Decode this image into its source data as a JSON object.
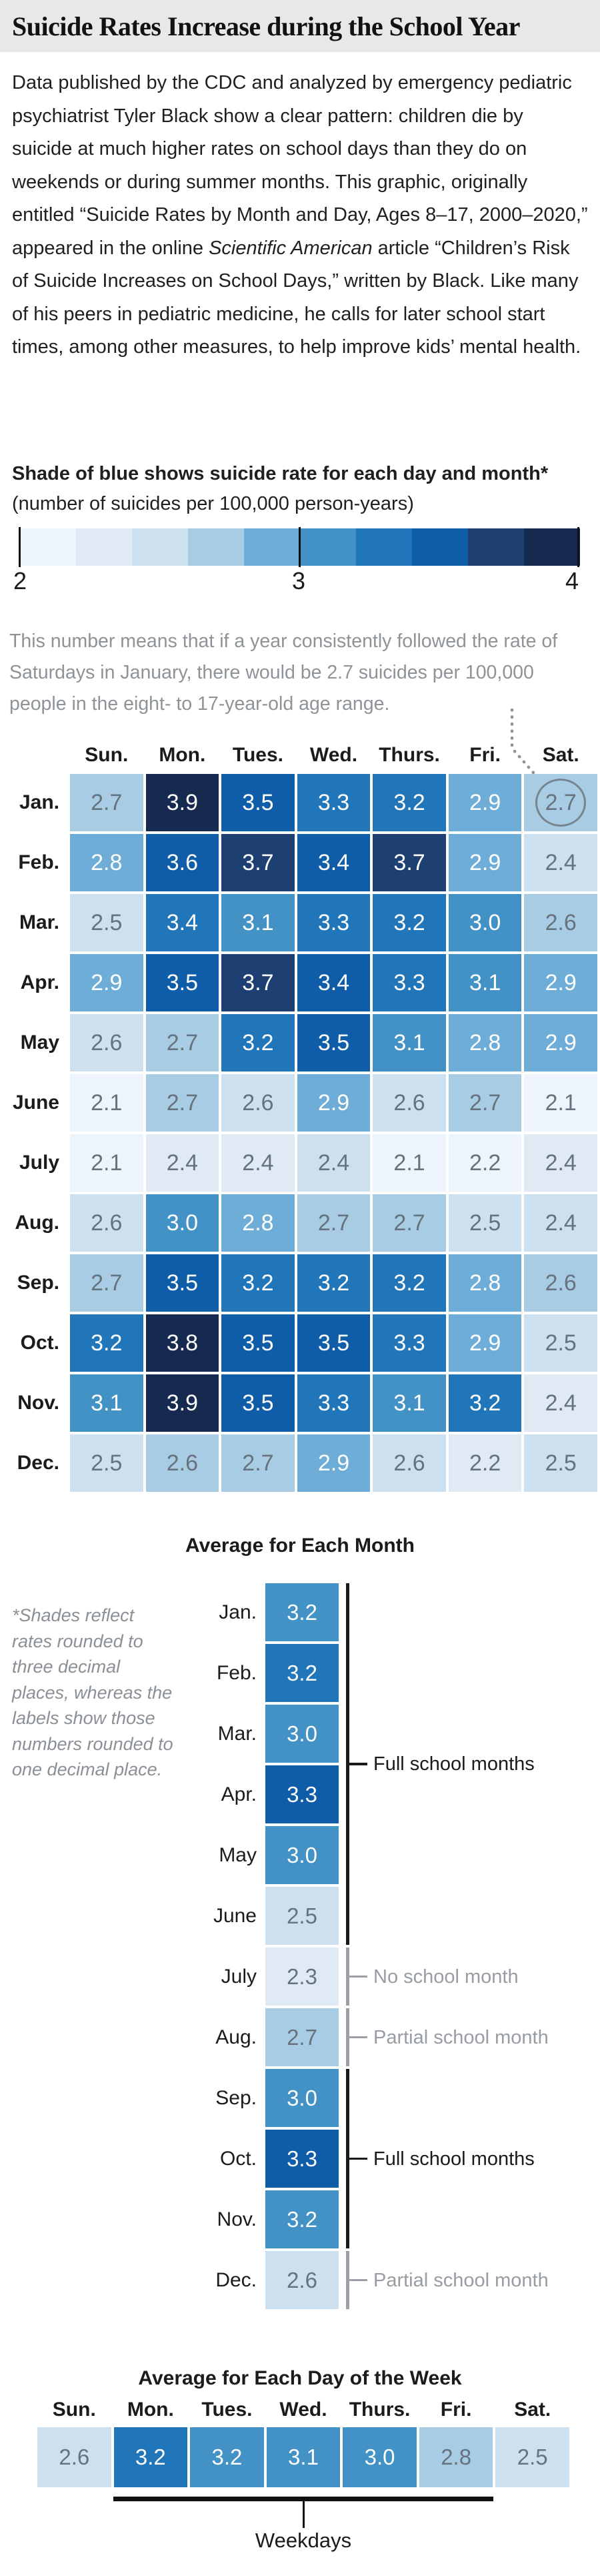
{
  "title": "Suicide Rates Increase during the School Year",
  "intro": {
    "p1": "Data published by the CDC and analyzed by emergency pediatric psychiatrist Tyler Black show a clear pattern: children die by suicide at much higher rates on school days than they do on weekends or during summer months. This graphic, originally entitled “Suicide Rates by Month and Day, Ages 8–17, 2000–2020,” appeared in the online ",
    "italic": "Scientific American",
    "p2": " article “Children’s Risk of Suicide Increases on School Days,” written by Black. Like many of his peers in pediatric medicine, he calls for later school start times, among other measures, to help improve kids’ mental health."
  },
  "legend": {
    "heading_bold": "Shade of blue shows suicide rate for each day and month*",
    "heading_normal": " (number of suicides per 100,000 person-years)",
    "scale_colors": [
      "#edf4fb",
      "#dfeaf5",
      "#cde0f0",
      "#a8cce4",
      "#6dadd7",
      "#4292c6",
      "#2176b9",
      "#0f5ca9",
      "#1e3f72",
      "#16294e"
    ],
    "ticks": [
      "2",
      "3",
      "4"
    ]
  },
  "annotation": "This number means that if a year consistently followed the rate of Saturdays in January, there would be 2.7 suicides per 100,000 people in the eight- to 17-year-old age range.",
  "footnote": "*Shades reflect rates rounded to three decimal places, whereas the labels show those numbers rounded to one decimal place.",
  "colors": {
    "title_bar_bg": "#e8e8e6",
    "ink": "#1b1b1b",
    "value_text_gray": "#66737e",
    "value_text_white": "#ffffff",
    "annotation_gray": "#8e9398",
    "bracket_black": "#1a1a1a",
    "bracket_gray": "#9aa0a5",
    "bracket_gray_label": "#979da3",
    "connector_gray": "#8a949c"
  },
  "chart_data": [
    {
      "type": "heatmap",
      "title": "Suicide Rates by Month and Day, Ages 8–17, 2000–2020",
      "columns": [
        "Sun.",
        "Mon.",
        "Tues.",
        "Wed.",
        "Thurs.",
        "Fri.",
        "Sat."
      ],
      "rows": [
        "Jan.",
        "Feb.",
        "Mar.",
        "Apr.",
        "May",
        "June",
        "July",
        "Aug.",
        "Sep.",
        "Oct.",
        "Nov.",
        "Dec."
      ],
      "values": [
        [
          2.7,
          3.9,
          3.5,
          3.3,
          3.2,
          2.9,
          2.7
        ],
        [
          2.8,
          3.6,
          3.7,
          3.4,
          3.7,
          2.9,
          2.4
        ],
        [
          2.5,
          3.4,
          3.1,
          3.3,
          3.2,
          3.0,
          2.6
        ],
        [
          2.9,
          3.5,
          3.7,
          3.4,
          3.3,
          3.1,
          2.9
        ],
        [
          2.6,
          2.7,
          3.2,
          3.5,
          3.1,
          2.8,
          2.9
        ],
        [
          2.1,
          2.7,
          2.6,
          2.9,
          2.6,
          2.7,
          2.1
        ],
        [
          2.1,
          2.4,
          2.4,
          2.4,
          2.1,
          2.2,
          2.4
        ],
        [
          2.6,
          3.0,
          2.8,
          2.7,
          2.7,
          2.5,
          2.4
        ],
        [
          2.7,
          3.5,
          3.2,
          3.2,
          3.2,
          2.8,
          2.6
        ],
        [
          3.2,
          3.8,
          3.5,
          3.5,
          3.3,
          2.9,
          2.5
        ],
        [
          3.1,
          3.9,
          3.5,
          3.3,
          3.1,
          3.2,
          2.4
        ],
        [
          2.5,
          2.6,
          2.7,
          2.9,
          2.6,
          2.2,
          2.5
        ]
      ],
      "shades": [
        [
          3,
          9,
          7,
          6,
          6,
          4,
          3
        ],
        [
          4,
          7,
          8,
          7,
          8,
          4,
          2
        ],
        [
          2,
          6,
          5,
          6,
          6,
          5,
          3
        ],
        [
          4,
          7,
          8,
          7,
          6,
          5,
          4
        ],
        [
          2,
          3,
          6,
          7,
          5,
          4,
          4
        ],
        [
          0,
          3,
          2,
          4,
          2,
          3,
          0
        ],
        [
          0,
          1,
          1,
          2,
          0,
          0,
          1
        ],
        [
          2,
          5,
          4,
          3,
          3,
          2,
          2
        ],
        [
          3,
          7,
          6,
          6,
          6,
          4,
          3
        ],
        [
          6,
          9,
          7,
          7,
          6,
          4,
          2
        ],
        [
          5,
          9,
          7,
          6,
          5,
          6,
          1
        ],
        [
          2,
          3,
          3,
          4,
          2,
          1,
          2
        ]
      ],
      "scale_range": [
        2,
        4
      ],
      "circled_cell": {
        "row": "Jan.",
        "column": "Sat.",
        "value": 2.7
      }
    },
    {
      "type": "bar",
      "title": "Average for Each Month",
      "categories": [
        "Jan.",
        "Feb.",
        "Mar.",
        "Apr.",
        "May",
        "June",
        "July",
        "Aug.",
        "Sep.",
        "Oct.",
        "Nov.",
        "Dec."
      ],
      "values": [
        3.2,
        3.2,
        3.0,
        3.3,
        3.0,
        2.5,
        2.3,
        2.7,
        3.0,
        3.3,
        3.2,
        2.6
      ],
      "shades": [
        5,
        6,
        5,
        7,
        5,
        2,
        1,
        3,
        5,
        7,
        5,
        2
      ],
      "groups": [
        {
          "label": "Full school months",
          "rows": [
            0,
            5
          ],
          "style": "black"
        },
        {
          "label": "No school month",
          "rows": [
            6,
            6
          ],
          "style": "gray"
        },
        {
          "label": "Partial school month",
          "rows": [
            7,
            7
          ],
          "style": "gray"
        },
        {
          "label": "Full school months",
          "rows": [
            8,
            10
          ],
          "style": "black"
        },
        {
          "label": "Partial school month",
          "rows": [
            11,
            11
          ],
          "style": "gray"
        }
      ]
    },
    {
      "type": "bar",
      "title": "Average for Each Day of the Week",
      "categories": [
        "Sun.",
        "Mon.",
        "Tues.",
        "Wed.",
        "Thurs.",
        "Fri.",
        "Sat."
      ],
      "values": [
        2.6,
        3.2,
        3.2,
        3.1,
        3.0,
        2.8,
        2.5
      ],
      "shades": [
        2,
        6,
        5,
        5,
        5,
        3,
        2
      ],
      "bracket": {
        "label": "Weekdays",
        "from": "Mon.",
        "to": "Fri."
      }
    }
  ]
}
